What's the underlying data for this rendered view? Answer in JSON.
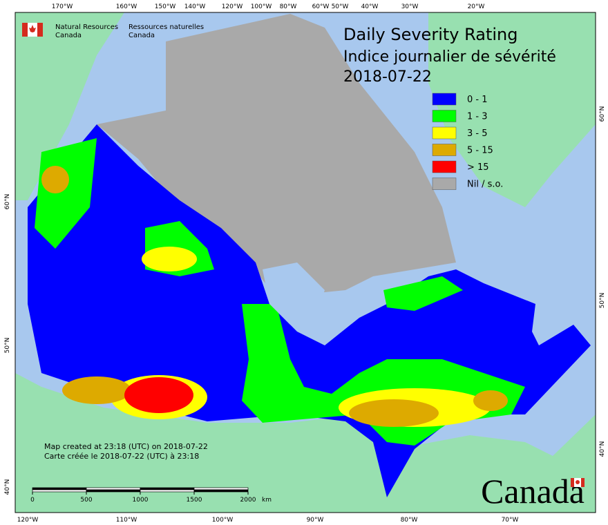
{
  "header": {
    "org_en": [
      "Natural Resources",
      "Canada"
    ],
    "org_fr": [
      "Ressources naturelles",
      "Canada"
    ]
  },
  "title": [
    "Daily Severity Rating",
    "Indice journalier de sévérité",
    "2018-07-22"
  ],
  "legend": [
    {
      "label": "0 - 1",
      "color": "#0000ff"
    },
    {
      "label": "1 - 3",
      "color": "#00ff00"
    },
    {
      "label": "3 - 5",
      "color": "#ffff00"
    },
    {
      "label": "5 - 15",
      "color": "#ddaa00"
    },
    {
      "label": "> 15",
      "color": "#ff0000"
    },
    {
      "label": "Nil / s.o.",
      "color": "#a9a9a9"
    }
  ],
  "graticule": {
    "top": [
      "170°W",
      "160°W",
      "150°W",
      "140°W",
      "120°W",
      "100°W",
      "80°W",
      "60°W",
      "50°W",
      "40°W",
      "30°W",
      "20°W"
    ],
    "bottom": [
      "120°W",
      "110°W",
      "100°W",
      "90°W",
      "80°W",
      "70°W"
    ],
    "left": [
      "60°N",
      "50°N",
      "40°N"
    ],
    "right": [
      "60°N",
      "50°N",
      "40°N"
    ]
  },
  "credits": [
    "Map created at 23:18 (UTC) on 2018-07-22",
    "Carte créée le 2018-07-22 (UTC) à 23:18"
  ],
  "scale_bar": {
    "ticks": [
      0,
      500,
      1000,
      1500,
      2000
    ],
    "unit": "km"
  },
  "wordmark": "Canada"
}
